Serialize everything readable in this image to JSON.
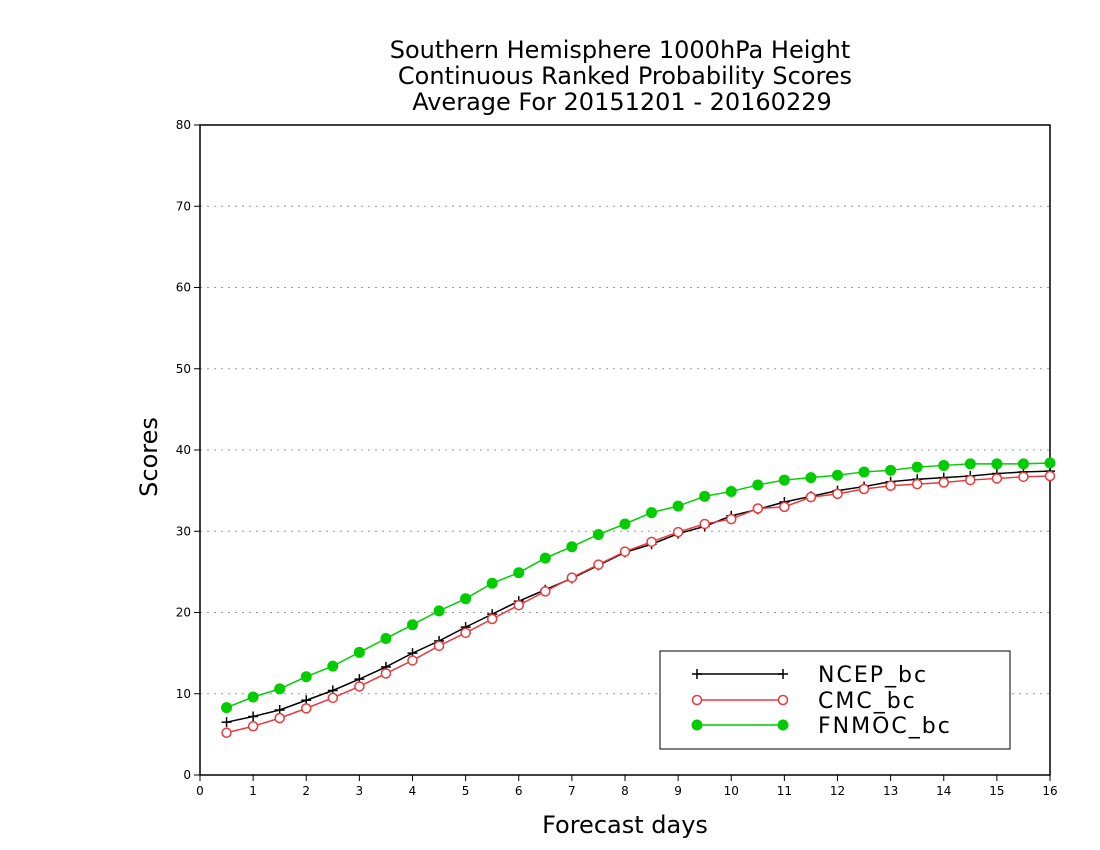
{
  "chart_data": {
    "type": "line",
    "title": [
      "Southern Hemisphere 1000hPa Height",
      "Continuous Ranked Probability Scores",
      "Average For 20151201 - 20160229"
    ],
    "xlabel": "Forecast days",
    "ylabel": "Scores",
    "xlim": [
      0,
      16
    ],
    "ylim": [
      0,
      80
    ],
    "xticks": [
      0,
      1,
      2,
      3,
      4,
      5,
      6,
      7,
      8,
      9,
      10,
      11,
      12,
      13,
      14,
      15,
      16
    ],
    "yticks": [
      0,
      10,
      20,
      30,
      40,
      50,
      60,
      70,
      80
    ],
    "grid": "horizontal-dotted",
    "legend_position": "bottom-right",
    "x": [
      0.5,
      1,
      1.5,
      2,
      2.5,
      3,
      3.5,
      4,
      4.5,
      5,
      5.5,
      6,
      6.5,
      7,
      7.5,
      8,
      8.5,
      9,
      9.5,
      10,
      10.5,
      11,
      11.5,
      12,
      12.5,
      13,
      13.5,
      14,
      14.5,
      15,
      15.5,
      16
    ],
    "series": [
      {
        "name": "NCEP_bc",
        "color": "#000000",
        "marker": "plus",
        "values": [
          6.5,
          7.2,
          8.0,
          9.2,
          10.4,
          11.8,
          13.3,
          15.0,
          16.5,
          18.2,
          19.8,
          21.4,
          22.8,
          24.2,
          25.8,
          27.4,
          28.4,
          29.7,
          30.6,
          31.9,
          32.7,
          33.6,
          34.3,
          35.0,
          35.5,
          36.1,
          36.4,
          36.6,
          36.8,
          37.1,
          37.3,
          37.4
        ]
      },
      {
        "name": "CMC_bc",
        "color": "#e8393c",
        "marker": "open-circle",
        "values": [
          5.2,
          6.0,
          7.0,
          8.2,
          9.5,
          10.9,
          12.5,
          14.1,
          15.9,
          17.5,
          19.2,
          20.9,
          22.6,
          24.3,
          25.9,
          27.5,
          28.7,
          29.9,
          30.9,
          31.5,
          32.8,
          33.0,
          34.2,
          34.6,
          35.2,
          35.6,
          35.8,
          36.0,
          36.3,
          36.5,
          36.7,
          36.8
        ]
      },
      {
        "name": "FNMOC_bc",
        "color": "#00cc00",
        "marker": "filled-circle",
        "values": [
          8.3,
          9.6,
          10.6,
          12.1,
          13.4,
          15.1,
          16.8,
          18.5,
          20.2,
          21.7,
          23.6,
          24.9,
          26.7,
          28.1,
          29.6,
          30.9,
          32.3,
          33.1,
          34.3,
          34.9,
          35.7,
          36.3,
          36.6,
          36.9,
          37.3,
          37.5,
          37.9,
          38.1,
          38.3,
          38.3,
          38.3,
          38.4
        ]
      }
    ]
  }
}
